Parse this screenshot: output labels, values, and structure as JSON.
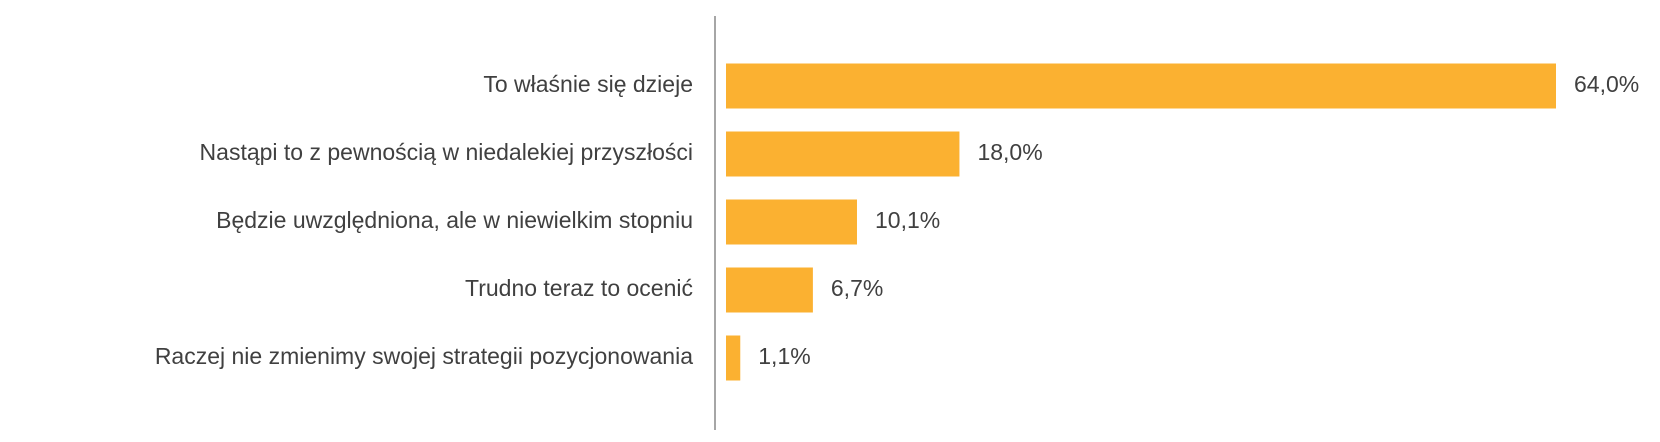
{
  "chart_data": {
    "type": "bar",
    "orientation": "horizontal",
    "categories": [
      "To właśnie się dzieje",
      "Nastąpi to z pewnością w niedalekiej przyszłości",
      "Będzie uwzględniona, ale w niewielkim stopniu",
      "Trudno teraz to ocenić",
      "Raczej nie zmienimy swojej strategii pozycjonowania"
    ],
    "values": [
      64.0,
      18.0,
      10.1,
      6.7,
      1.1
    ],
    "value_labels": [
      "64,0%",
      "18,0%",
      "10,1%",
      "6,7%",
      "1,1%"
    ],
    "xlim": [
      0,
      64.0
    ],
    "bar_color": "#FBB131",
    "axis_color": "#A6A6A6",
    "text_color": "#404040",
    "grid": false,
    "legend": "none",
    "title": "",
    "xlabel": "",
    "ylabel": ""
  }
}
